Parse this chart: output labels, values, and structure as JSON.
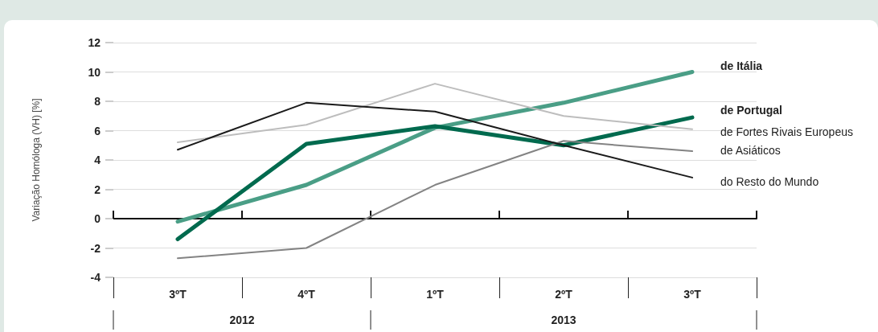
{
  "chart_data": {
    "type": "line",
    "ylabel": "Variação Homóloga (VH) [%]",
    "categories": [
      "3ºT",
      "4ºT",
      "1ºT",
      "2ºT",
      "3ºT"
    ],
    "annotations": [
      "2012",
      "2013"
    ],
    "series": [
      {
        "name": "de Itália",
        "color": "#4a9e86",
        "values": [
          -0.2,
          2.3,
          6.2,
          7.9,
          10.0
        ]
      },
      {
        "name": "de Portugal",
        "color": "#006a4e",
        "values": [
          -1.4,
          5.1,
          6.3,
          5.0,
          6.9
        ]
      },
      {
        "name": "de Fortes Rivais Europeus",
        "color": "#bdbdbd",
        "values": [
          5.2,
          6.4,
          9.2,
          7.0,
          6.1
        ]
      },
      {
        "name": "de Asiáticos",
        "color": "#838383",
        "values": [
          -2.7,
          -2.0,
          2.3,
          5.3,
          4.6
        ]
      },
      {
        "name": "do Resto do Mundo",
        "color": "#1a1a1a",
        "values": [
          4.7,
          7.9,
          7.3,
          5.0,
          2.8
        ]
      }
    ],
    "ylim": [
      -4,
      12
    ],
    "yticks": [
      -4,
      -2,
      0,
      2,
      4,
      6,
      8,
      10,
      12
    ],
    "grid": "y",
    "legend": false,
    "marker": "none",
    "line_style": "solid"
  }
}
